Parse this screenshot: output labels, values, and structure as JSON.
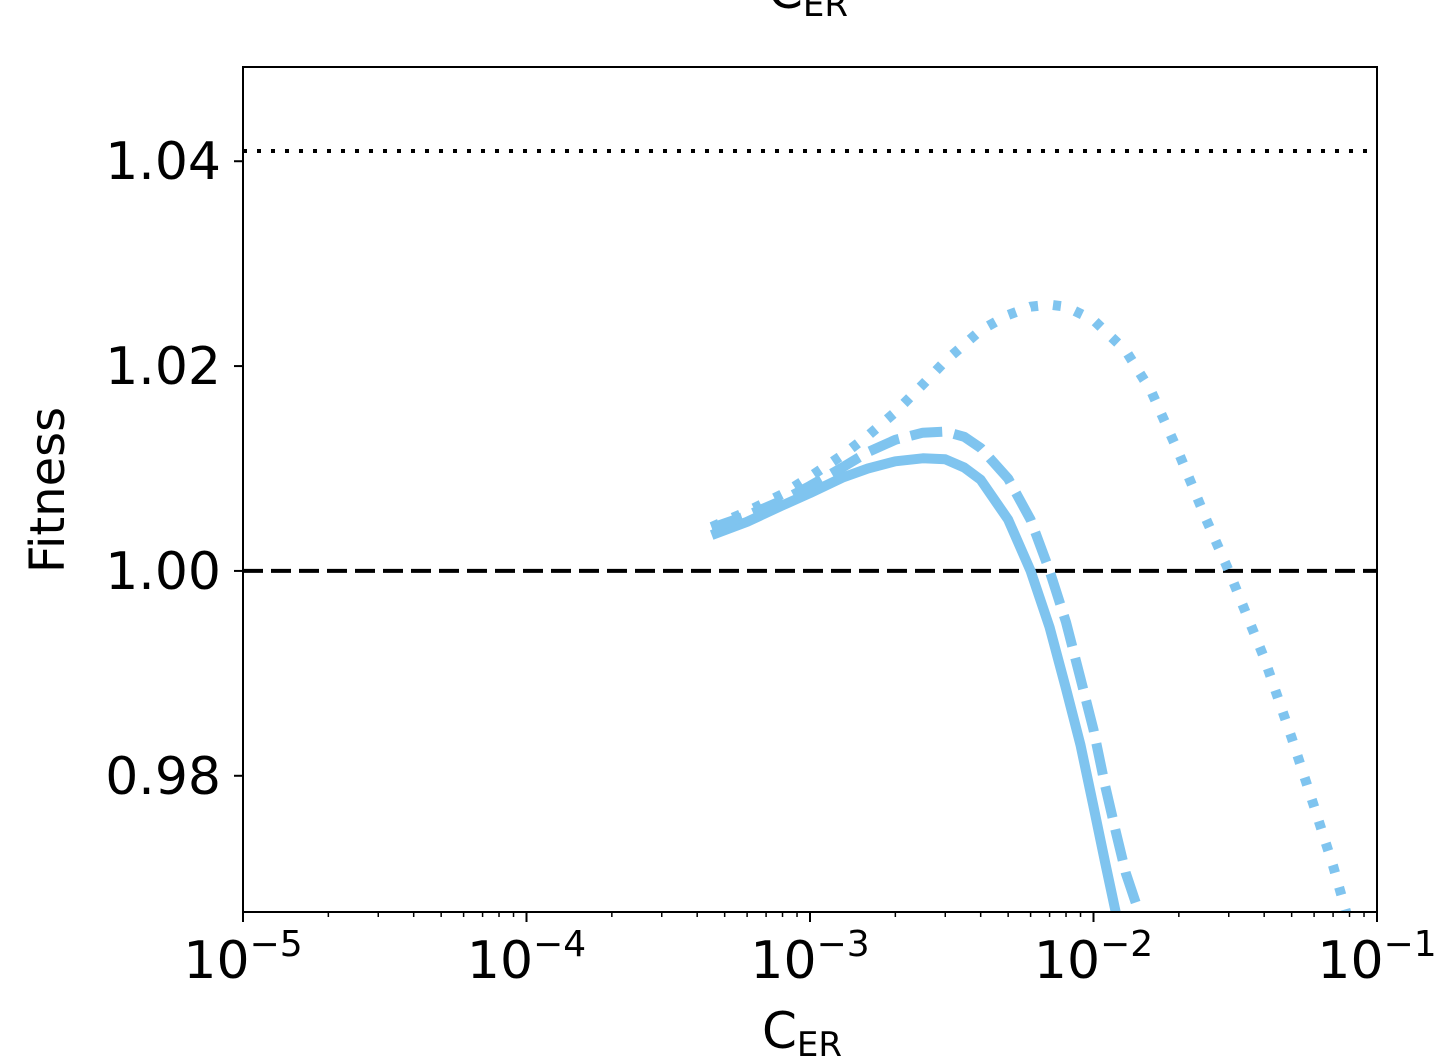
{
  "chart_data": {
    "type": "line",
    "title_fragment": {
      "base": "C",
      "sub": "ER"
    },
    "xlabel": {
      "base": "C",
      "sub": "ER"
    },
    "ylabel": "Fitness",
    "xscale": "log",
    "xlim": [
      1e-05,
      0.1
    ],
    "ylim": [
      0.9667,
      1.0492
    ],
    "x_ticks": [
      {
        "value": 1e-05,
        "base": "10",
        "exp": "−5"
      },
      {
        "value": 0.0001,
        "base": "10",
        "exp": "−4"
      },
      {
        "value": 0.001,
        "base": "10",
        "exp": "−3"
      },
      {
        "value": 0.01,
        "base": "10",
        "exp": "−2"
      },
      {
        "value": 0.1,
        "base": "10",
        "exp": "−1"
      }
    ],
    "y_ticks": [
      {
        "value": 0.98,
        "label": "0.98"
      },
      {
        "value": 1.0,
        "label": "1.00"
      },
      {
        "value": 1.02,
        "label": "1.02"
      },
      {
        "value": 1.04,
        "label": "1.04"
      }
    ],
    "reference_lines": [
      {
        "y": 1.0,
        "style": "dashed",
        "color": "#000000"
      },
      {
        "y": 1.041,
        "style": "dotted",
        "color": "#000000"
      }
    ],
    "series": [
      {
        "style": "solid",
        "color": "#7fc4ef",
        "x": [
          0.00045,
          0.0006,
          0.0008,
          0.001,
          0.0013,
          0.0016,
          0.002,
          0.0025,
          0.003,
          0.0035,
          0.004,
          0.005,
          0.006,
          0.007,
          0.008,
          0.009,
          0.01,
          0.011,
          0.012
        ],
        "y": [
          1.0035,
          1.0048,
          1.0064,
          1.0076,
          1.0091,
          1.01,
          1.0107,
          1.011,
          1.0109,
          1.0101,
          1.0089,
          1.005,
          1.0,
          0.9945,
          0.9885,
          0.983,
          0.977,
          0.9715,
          0.9666
        ]
      },
      {
        "style": "dashed",
        "color": "#7fc4ef",
        "x": [
          0.00045,
          0.0006,
          0.0008,
          0.001,
          0.0013,
          0.0016,
          0.002,
          0.0025,
          0.003,
          0.0035,
          0.004,
          0.005,
          0.006,
          0.007,
          0.008,
          0.009,
          0.01,
          0.011,
          0.012,
          0.013,
          0.0145
        ],
        "y": [
          1.0042,
          1.0054,
          1.0069,
          1.0083,
          1.0101,
          1.0116,
          1.0128,
          1.0135,
          1.0136,
          1.0131,
          1.012,
          1.009,
          1.005,
          1.0,
          0.995,
          0.9895,
          0.9845,
          0.979,
          0.9745,
          0.9705,
          0.9666
        ]
      },
      {
        "style": "dotted",
        "color": "#7fc4ef",
        "x": [
          0.00045,
          0.0006,
          0.0008,
          0.001,
          0.0013,
          0.0016,
          0.002,
          0.0025,
          0.003,
          0.004,
          0.005,
          0.006,
          0.007,
          0.008,
          0.01,
          0.013,
          0.016,
          0.02,
          0.025,
          0.03,
          0.04,
          0.05,
          0.06,
          0.07,
          0.078
        ],
        "y": [
          1.0043,
          1.0058,
          1.0075,
          1.0092,
          1.0113,
          1.0132,
          1.0155,
          1.0182,
          1.0205,
          1.0235,
          1.025,
          1.0258,
          1.026,
          1.0258,
          1.0245,
          1.0215,
          1.0175,
          1.0115,
          1.005,
          1.0,
          0.9915,
          0.9837,
          0.977,
          0.9712,
          0.9666
        ]
      }
    ]
  }
}
